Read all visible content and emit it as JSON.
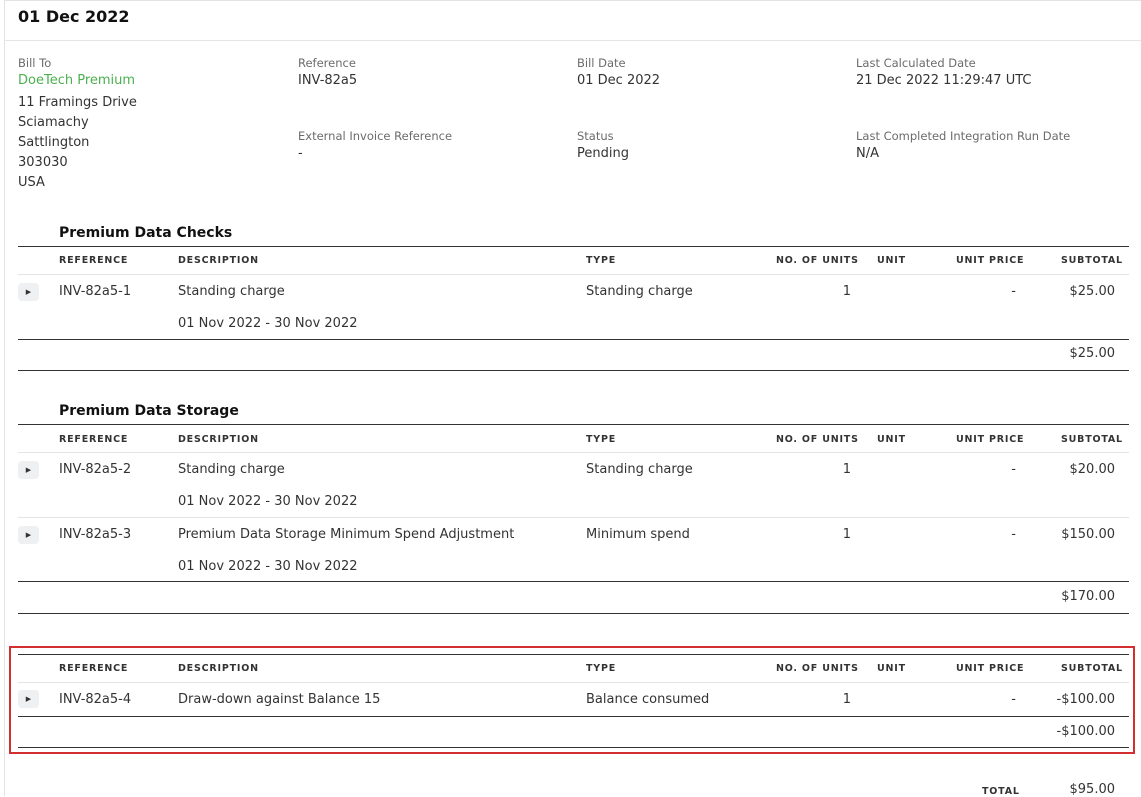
{
  "page": {
    "title": "01 Dec 2022"
  },
  "bill_to": {
    "label": "Bill To",
    "name": "DoeTech Premium",
    "address": [
      "11 Framings Drive",
      "Sciamachy",
      "Sattlington",
      "303030",
      "USA"
    ]
  },
  "meta": {
    "reference_label": "Reference",
    "reference_value": "INV-82a5",
    "bill_date_label": "Bill Date",
    "bill_date_value": "01 Dec 2022",
    "last_calc_label": "Last Calculated Date",
    "last_calc_value": "21 Dec 2022 11:29:47 UTC",
    "external_ref_label": "External Invoice Reference",
    "external_ref_value": "-",
    "status_label": "Status",
    "status_value": "Pending",
    "last_run_label": "Last Completed Integration Run Date",
    "last_run_value": "N/A"
  },
  "columns": {
    "reference": "REFERENCE",
    "description": "DESCRIPTION",
    "type": "TYPE",
    "units": "NO. OF UNITS",
    "unit": "UNIT",
    "unit_price": "UNIT PRICE",
    "subtotal": "SUBTOTAL"
  },
  "sections": [
    {
      "title": "Premium Data Checks",
      "rows": [
        {
          "reference": "INV-82a5-1",
          "description": "Standing charge",
          "period": "01 Nov 2022 - 30 Nov 2022",
          "type": "Standing charge",
          "units": "1",
          "unit_price": "-",
          "subtotal": "$25.00"
        }
      ],
      "total": "$25.00"
    },
    {
      "title": "Premium Data Storage",
      "rows": [
        {
          "reference": "INV-82a5-2",
          "description": "Standing charge",
          "period": "01 Nov 2022 - 30 Nov 2022",
          "type": "Standing charge",
          "units": "1",
          "unit_price": "-",
          "subtotal": "$20.00"
        },
        {
          "reference": "INV-82a5-3",
          "description": "Premium Data Storage Minimum Spend Adjustment",
          "period": "01 Nov 2022 - 30 Nov 2022",
          "type": "Minimum spend",
          "units": "1",
          "unit_price": "-",
          "subtotal": "$150.00"
        }
      ],
      "total": "$170.00"
    },
    {
      "title": "",
      "rows": [
        {
          "reference": "INV-82a5-4",
          "description": "Draw-down against Balance 15",
          "period": "",
          "type": "Balance consumed",
          "units": "1",
          "unit_price": "-",
          "subtotal": "-$100.00"
        }
      ],
      "total": "-$100.00"
    }
  ],
  "grand_total": {
    "label": "TOTAL",
    "value": "$95.00"
  },
  "colors": {
    "link": "#4caf50",
    "highlight": "#d32f2f"
  },
  "icons": {
    "expand": "caret-right-icon"
  }
}
